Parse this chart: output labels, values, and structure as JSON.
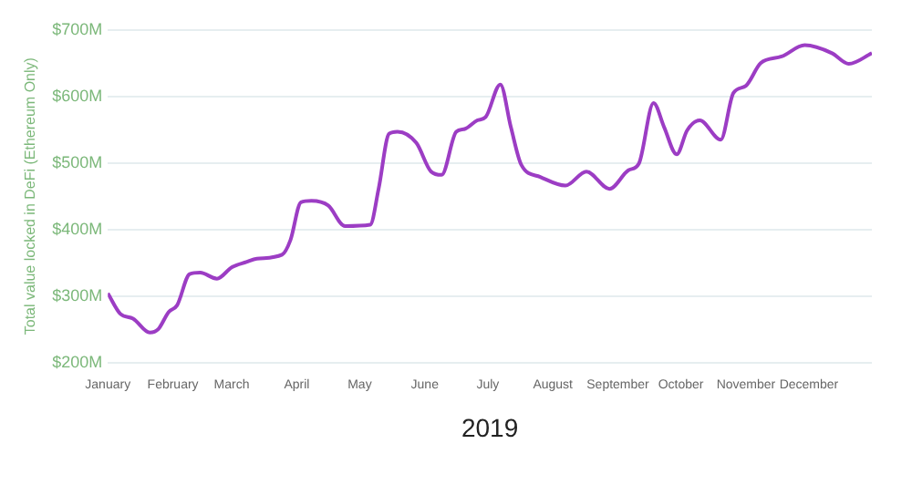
{
  "chart_data": {
    "type": "line",
    "xlabel": "2019",
    "ylabel": "Total value locked in DeFi (Ethereum Only)",
    "x": [
      "2019-01-01",
      "2019-01-07",
      "2019-01-13",
      "2019-01-21",
      "2019-01-25",
      "2019-01-30",
      "2019-02-03",
      "2019-02-09",
      "2019-02-14",
      "2019-02-22",
      "2019-03-01",
      "2019-03-08",
      "2019-03-13",
      "2019-03-25",
      "2019-03-29",
      "2019-04-03",
      "2019-04-08",
      "2019-04-16",
      "2019-04-24",
      "2019-05-06",
      "2019-05-10",
      "2019-05-15",
      "2019-05-19",
      "2019-05-28",
      "2019-06-04",
      "2019-06-09",
      "2019-06-16",
      "2019-06-20",
      "2019-06-26",
      "2019-06-30",
      "2019-07-07",
      "2019-07-12",
      "2019-07-17",
      "2019-07-26",
      "2019-08-07",
      "2019-08-17",
      "2019-08-28",
      "2019-09-06",
      "2019-09-11",
      "2019-09-18",
      "2019-09-23",
      "2019-09-29",
      "2019-10-04",
      "2019-10-10",
      "2019-10-20",
      "2019-10-26",
      "2019-11-01",
      "2019-11-08",
      "2019-11-18",
      "2019-11-29",
      "2019-12-12",
      "2019-12-20",
      "2019-12-31"
    ],
    "series": [
      {
        "color": "#9c3dc4",
        "values": [
          304,
          273,
          266,
          245,
          250,
          276,
          286,
          333,
          335,
          326,
          343,
          351,
          356,
          362,
          384,
          441,
          443,
          436,
          405,
          407,
          461,
          544,
          547,
          530,
          487,
          482,
          547,
          551,
          564,
          569,
          618,
          554,
          497,
          479,
          466,
          487,
          461,
          489,
          499,
          590,
          554,
          513,
          549,
          564,
          535,
          605,
          616,
          650,
          660,
          677,
          665,
          649,
          665
        ]
      }
    ],
    "xlim": [
      "2019-01-01",
      "2019-12-31"
    ],
    "xticks": [
      {
        "value": "2019-01-01",
        "label": "January"
      },
      {
        "value": "2019-02-01",
        "label": "February"
      },
      {
        "value": "2019-03-01",
        "label": "March"
      },
      {
        "value": "2019-04-01",
        "label": "April"
      },
      {
        "value": "2019-05-01",
        "label": "May"
      },
      {
        "value": "2019-06-01",
        "label": "June"
      },
      {
        "value": "2019-07-01",
        "label": "July"
      },
      {
        "value": "2019-08-01",
        "label": "August"
      },
      {
        "value": "2019-09-01",
        "label": "September"
      },
      {
        "value": "2019-10-01",
        "label": "October"
      },
      {
        "value": "2019-11-01",
        "label": "November"
      },
      {
        "value": "2019-12-01",
        "label": "December"
      }
    ],
    "ylim": [
      200,
      700
    ],
    "yticks": [
      {
        "value": 200,
        "label": "$200M"
      },
      {
        "value": 300,
        "label": "$300M"
      },
      {
        "value": 400,
        "label": "$400M"
      },
      {
        "value": 500,
        "label": "$500M"
      },
      {
        "value": 600,
        "label": "$600M"
      },
      {
        "value": 700,
        "label": "$700M"
      }
    ],
    "grid": "y",
    "legend": false
  }
}
